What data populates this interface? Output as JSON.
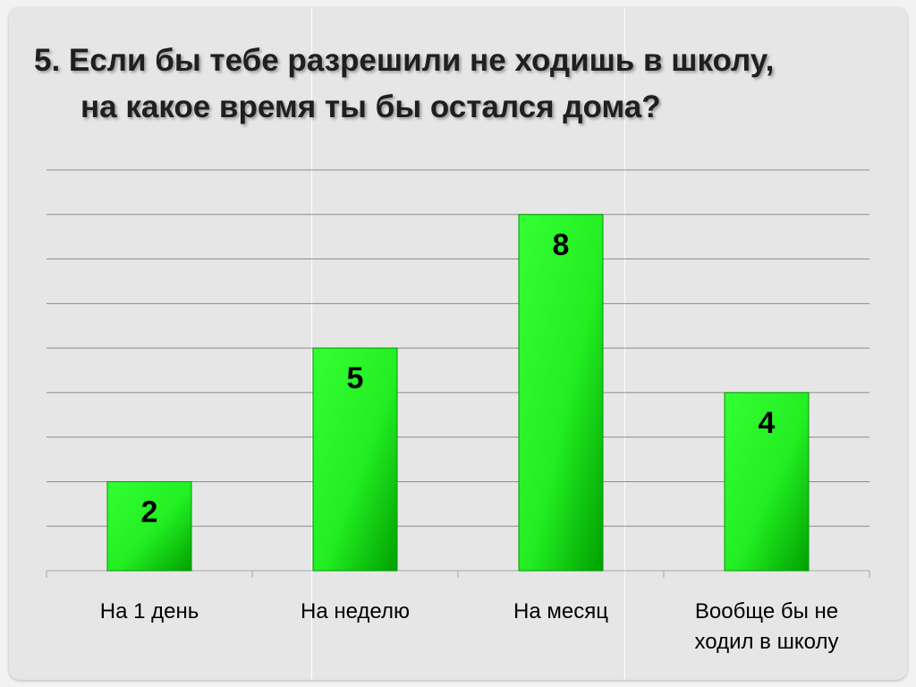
{
  "slide": {
    "title_line1": "5. Если бы тебе разрешили не ходишь в школу,",
    "title_line2": "на какое время ты бы остался дома?"
  },
  "chart_data": {
    "type": "bar",
    "categories": [
      "На 1 день",
      "На неделю",
      "На месяц",
      "Вообще бы не ходил в школу"
    ],
    "category_lines": [
      [
        "На 1 день"
      ],
      [
        "На неделю"
      ],
      [
        "На месяц"
      ],
      [
        "Вообще бы не",
        "ходил в школу"
      ]
    ],
    "values": [
      2,
      5,
      8,
      4
    ],
    "data_labels": [
      "2",
      "5",
      "8",
      "4"
    ],
    "ylim": [
      0,
      9
    ],
    "grid": true,
    "legend": "none",
    "colors": {
      "bar_light": "#33ff33",
      "bar_dark": "#00a000",
      "bar_edge": "#009900",
      "grid": "#8c8c8c",
      "axis": "#a6a6a6",
      "label": "#000000"
    }
  }
}
